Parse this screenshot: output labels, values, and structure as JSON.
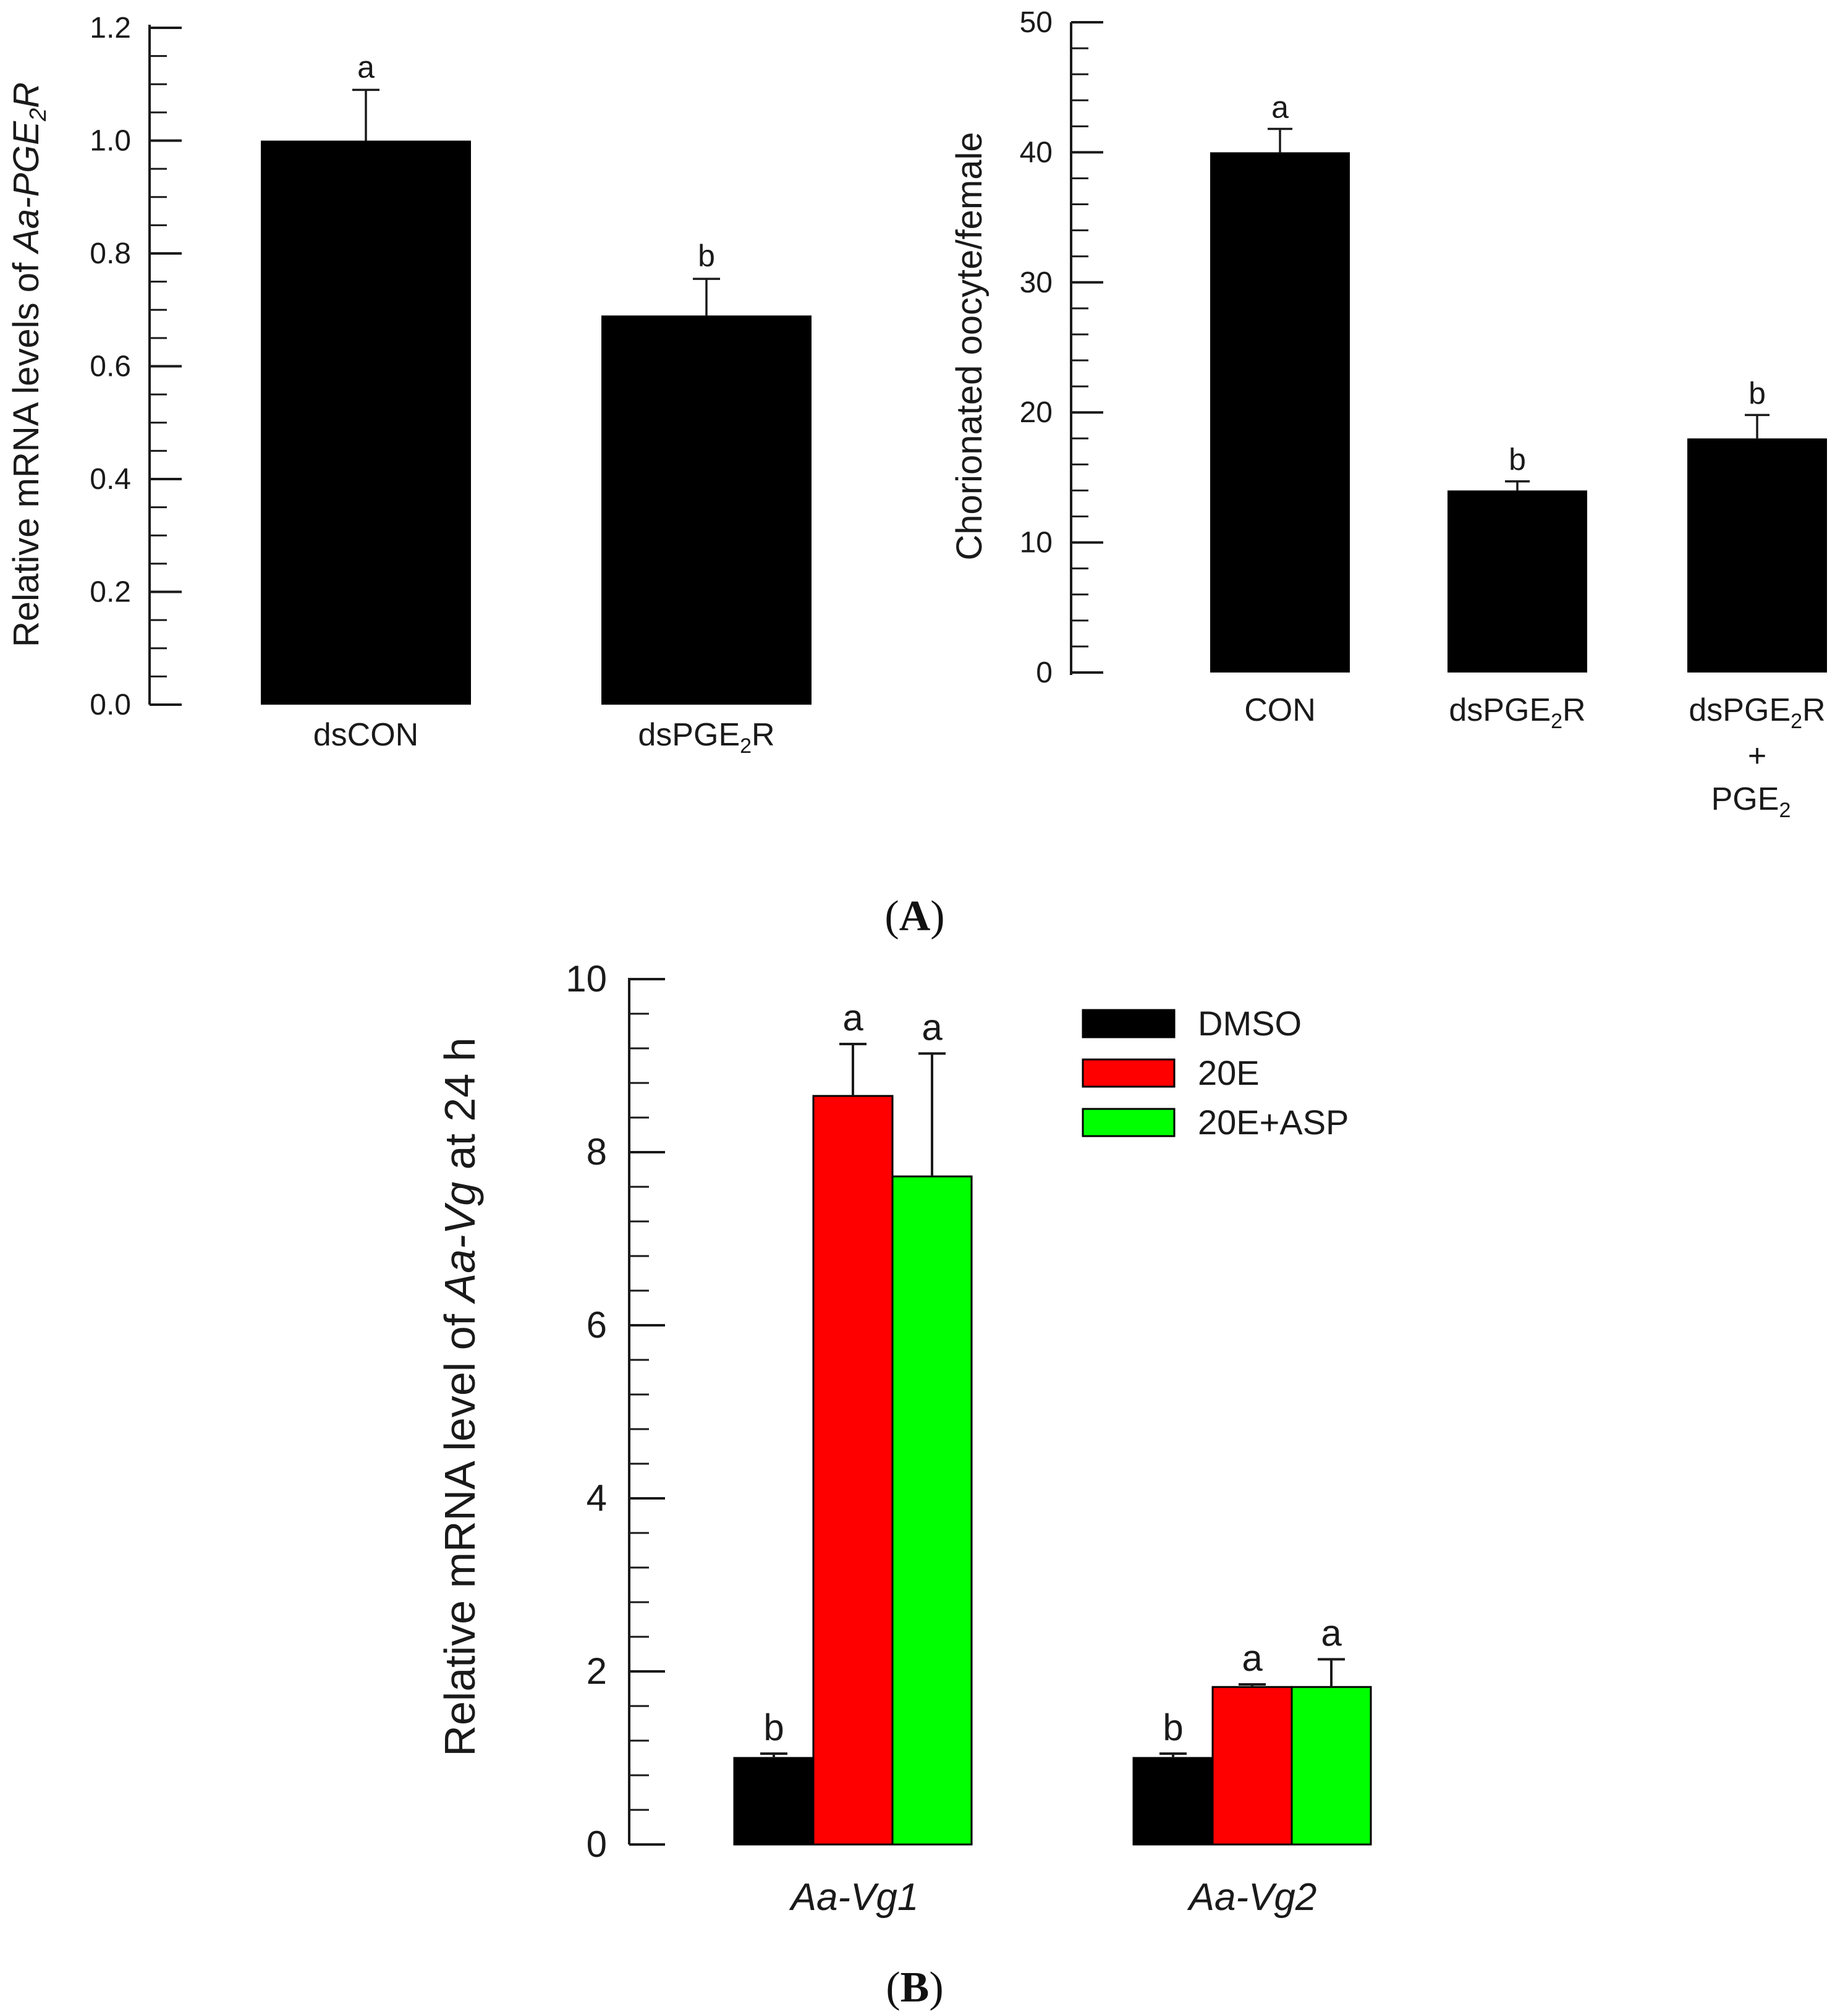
{
  "chart_data": [
    {
      "type": "bar",
      "panel": "A-left",
      "title": "",
      "ylabel_prefix": "Relative mRNA levels of ",
      "ylabel_gene": "Aa-PGE",
      "ylabel_sub": "2",
      "ylabel_suffix": "R",
      "xlabel": "",
      "ylim": [
        0,
        1.2
      ],
      "yticks": [
        "0.0",
        "0.2",
        "0.4",
        "0.6",
        "0.8",
        "1.0",
        "1.2"
      ],
      "categories": [
        {
          "text": "dsCON",
          "sub": "",
          "suffix": ""
        },
        {
          "text": "dsPGE",
          "sub": "2",
          "suffix": "R"
        }
      ],
      "values": [
        1.0,
        0.69
      ],
      "errors": [
        0.09,
        0.065
      ],
      "significance": [
        "a",
        "b"
      ],
      "color": "#000000"
    },
    {
      "type": "bar",
      "panel": "A-right",
      "title": "",
      "ylabel": "Chorionated oocyte/female",
      "xlabel": "",
      "ylim": [
        0,
        50
      ],
      "yticks": [
        "0",
        "10",
        "20",
        "30",
        "40",
        "50"
      ],
      "categories": [
        {
          "text": "CON",
          "sub": "",
          "suffix": ""
        },
        {
          "text": "dsPGE",
          "sub": "2",
          "suffix": "R"
        },
        {
          "text": "dsPGE",
          "sub": "2",
          "suffix": "R",
          "line2": "+",
          "line3": "PGE",
          "line3_sub": "2"
        }
      ],
      "values": [
        40.0,
        14.0,
        18.0
      ],
      "errors": [
        1.8,
        0.7,
        1.8
      ],
      "significance": [
        "a",
        "b",
        "b"
      ],
      "color": "#000000"
    },
    {
      "type": "bar",
      "panel": "B",
      "title": "",
      "ylabel_prefix": "Relative mRNA level of ",
      "ylabel_gene": "Aa-Vg",
      "ylabel_suffix": " at 24 h",
      "xlabel": "",
      "ylim": [
        0,
        10
      ],
      "yticks": [
        "0",
        "2",
        "4",
        "6",
        "8",
        "10"
      ],
      "categories": [
        "Aa-Vg1",
        "Aa-Vg2"
      ],
      "series": [
        {
          "name": "DMSO",
          "color": "#000000",
          "values": [
            1.0,
            1.0
          ],
          "errors": [
            0.05,
            0.05
          ],
          "significance": [
            "b",
            "b"
          ]
        },
        {
          "name": "20E",
          "color": "#ff0000",
          "values": [
            8.65,
            1.82
          ],
          "errors": [
            0.6,
            0.03
          ],
          "significance": [
            "a",
            "a"
          ]
        },
        {
          "name": "20E+ASP",
          "color": "#00ff00",
          "values": [
            7.72,
            1.82
          ],
          "errors": [
            1.42,
            0.32
          ],
          "significance": [
            "a",
            "a"
          ]
        }
      ],
      "legend_position": "top-right"
    }
  ],
  "panel_labels": [
    "A",
    "B"
  ]
}
